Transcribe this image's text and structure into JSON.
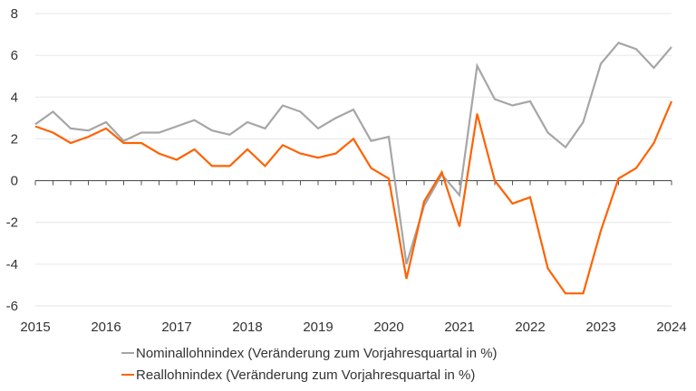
{
  "chart_data": {
    "type": "line",
    "title": "",
    "xlabel": "",
    "ylabel": "",
    "xlim": [
      2015,
      2024
    ],
    "ylim": [
      -6,
      8
    ],
    "x_ticks": [
      "2015",
      "2016",
      "2017",
      "2018",
      "2019",
      "2020",
      "2021",
      "2022",
      "2023",
      "2024"
    ],
    "y_ticks": [
      "8",
      "6",
      "4",
      "2",
      "0",
      "-2",
      "-4",
      "-6"
    ],
    "grid": true,
    "legend_position": "bottom",
    "x_frequency": "quarterly",
    "series": [
      {
        "name": "Nominallohnindex (Veränderung zum Vorjahresquartal in %)",
        "color": "#a6a6a6",
        "values": [
          2.7,
          3.3,
          2.5,
          2.4,
          2.8,
          1.9,
          2.3,
          2.3,
          2.6,
          2.9,
          2.4,
          2.2,
          2.8,
          2.5,
          3.6,
          3.3,
          2.5,
          3.0,
          3.4,
          1.9,
          2.1,
          -4.0,
          -1.2,
          0.3,
          -0.7,
          5.5,
          3.9,
          3.6,
          3.8,
          2.3,
          1.6,
          2.8,
          5.6,
          6.6,
          6.3,
          5.4,
          6.4
        ]
      },
      {
        "name": "Reallohnindex (Veränderung zum Vorjahresquartal in %)",
        "color": "#ff6200",
        "values": [
          2.6,
          2.3,
          1.8,
          2.1,
          2.5,
          1.8,
          1.8,
          1.3,
          1.0,
          1.5,
          0.7,
          0.7,
          1.5,
          0.7,
          1.7,
          1.3,
          1.1,
          1.3,
          2.0,
          0.6,
          0.1,
          -4.7,
          -1.0,
          0.4,
          -2.2,
          3.2,
          0.0,
          -1.1,
          -0.8,
          -4.2,
          -5.4,
          -5.4,
          -2.4,
          0.1,
          0.6,
          1.8,
          3.8
        ]
      }
    ]
  }
}
